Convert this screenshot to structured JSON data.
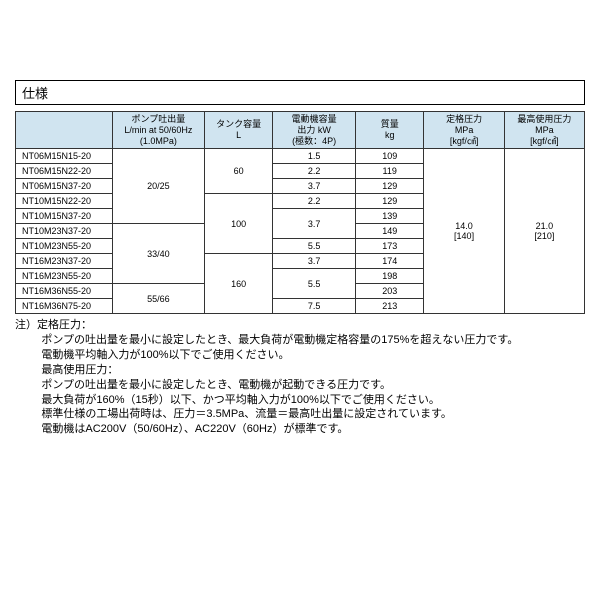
{
  "title": "仕様",
  "columns": [
    "",
    "ポンプ吐出量\nL/min at 50/60Hz\n(1.0MPa)",
    "タンク容量\nL",
    "電動機容量\n出力 kW\n(極数：4P)",
    "質量\nkg",
    "定格圧力\nMPa\n[kgf/㎠]",
    "最高使用圧力\nMPa\n[kgf/㎠]"
  ],
  "models": [
    "NT06M15N15-20",
    "NT06M15N22-20",
    "NT06M15N37-20",
    "NT10M15N22-20",
    "NT10M15N37-20",
    "NT10M23N37-20",
    "NT10M23N55-20",
    "NT16M23N37-20",
    "NT16M23N55-20",
    "NT16M36N55-20",
    "NT16M36N75-20"
  ],
  "pump": {
    "g1": "20/25",
    "g2": "33/40",
    "g3": "55/66"
  },
  "tank": {
    "t1": "60",
    "t2": "100",
    "t3": "160"
  },
  "motor": [
    "1.5",
    "2.2",
    "3.7",
    "2.2",
    "3.7",
    "5.5",
    "3.7",
    "5.5",
    "7.5"
  ],
  "mass": [
    "109",
    "119",
    "129",
    "129",
    "139",
    "149",
    "173",
    "174",
    "198",
    "203",
    "213"
  ],
  "rated": "14.0\n[140]",
  "max": "21.0\n[210]",
  "notes": {
    "l1": "注）定格圧力：",
    "l2": "ポンプの吐出量を最小に設定したとき、最大負荷が電動機定格容量の175%を超えない圧力です。",
    "l3": "電動機平均軸入力が100%以下でご使用ください。",
    "l4": "最高使用圧力：",
    "l5": "ポンプの吐出量を最小に設定したとき、電動機が起動できる圧力です。",
    "l6": "最大負荷が160%（15秒）以下、かつ平均軸入力が100%以下でご使用ください。",
    "l7": "標準仕様の工場出荷時は、圧力＝3.5MPa、流量＝最高吐出量に設定されています。",
    "l8": "電動機はAC200V（50/60Hz）、AC220V（60Hz）が標準です。"
  }
}
